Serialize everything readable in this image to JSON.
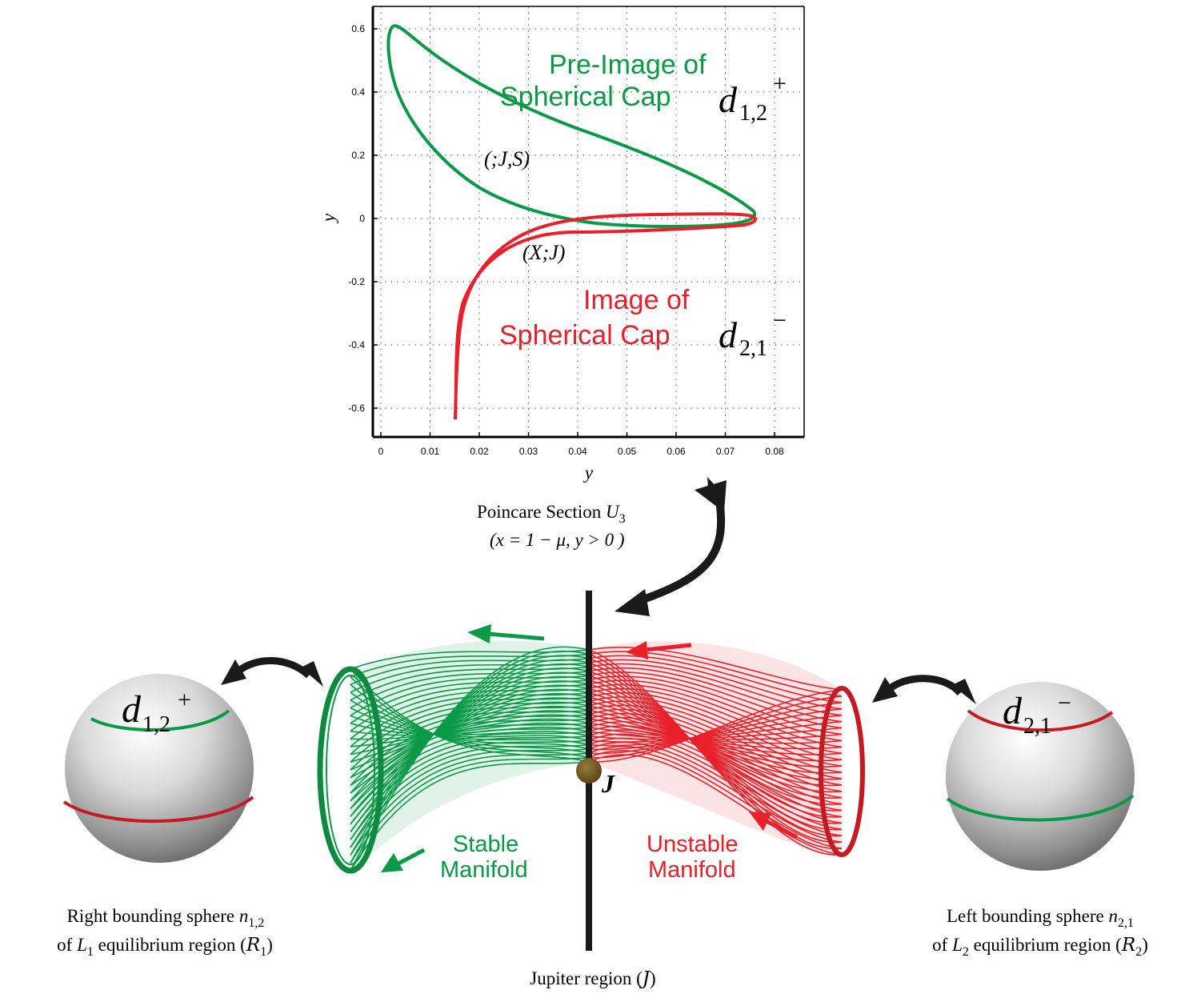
{
  "plot": {
    "y_axis_label": "y",
    "x_axis_label": "y",
    "x_ticks": [
      "0",
      "0.01",
      "0.02",
      "0.03",
      "0.04",
      "0.05",
      "0.06",
      "0.07",
      "0.08"
    ],
    "y_ticks": [
      "0.6",
      "0.4",
      "0.2",
      "0",
      "-0.2",
      "-0.4",
      "-0.6"
    ],
    "pre_image_label_line1": "Pre-Image of",
    "pre_image_label_line2": "Spherical Cap",
    "pre_image_symbol": "d",
    "pre_image_subscript": "1,2",
    "pre_image_superscript": "+",
    "image_label_line1": "Image of",
    "image_label_line2": "Spherical Cap",
    "image_symbol": "d",
    "image_subscript": "2,1",
    "image_superscript": "−",
    "region_js_label": "(;J,S)",
    "region_xj_label": "(X;J)"
  },
  "poincare": {
    "line1_text": "Poincare Section ",
    "line1_symbol": "U",
    "line1_subscript": "3",
    "line2_text": "(x = 1 − μ, y > 0 )"
  },
  "manifolds": {
    "stable_line1": "Stable",
    "stable_line2": "Manifold",
    "unstable_line1": "Unstable",
    "unstable_line2": "Manifold",
    "jupiter_symbol": "J"
  },
  "spheres": {
    "left_symbol": "d",
    "left_subscript": "1,2",
    "left_superscript": "+",
    "right_symbol": "d",
    "right_subscript": "2,1",
    "right_superscript": "−"
  },
  "captions": {
    "left_line1_text": "Right bounding sphere ",
    "left_line1_symbol": "n",
    "left_line1_subscript": "1,2",
    "left_line2_prefix": "of ",
    "left_line2_symbol": "L",
    "left_line2_subscript": "1",
    "left_line2_text": " equilibrium region (",
    "left_line2_region": "R",
    "left_line2_region_subscript": "1",
    "left_line2_suffix": ")",
    "right_line1_text": "Left bounding sphere ",
    "right_line1_symbol": "n",
    "right_line1_subscript": "2,1",
    "right_line2_prefix": "of ",
    "right_line2_symbol": "L",
    "right_line2_subscript": "2",
    "right_line2_text": " equilibrium region (",
    "right_line2_region": "R",
    "right_line2_region_subscript": "2",
    "right_line2_suffix": ")",
    "center_text": "Jupiter region (",
    "center_region": "J",
    "center_suffix": ")"
  },
  "colors": {
    "green": "#0a9a47",
    "red": "#e8202a",
    "dark": "#1a1a1a",
    "planet": "#6b5424"
  }
}
